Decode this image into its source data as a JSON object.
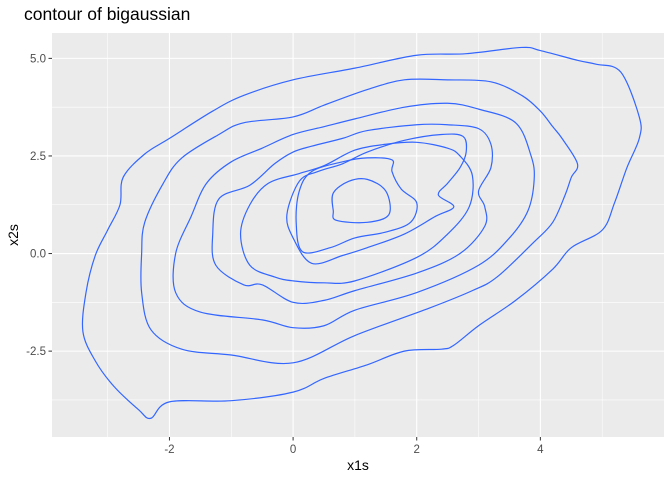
{
  "chart_data": {
    "type": "contour",
    "title": "contour of bigaussian",
    "xlabel": "x1s",
    "ylabel": "x2s",
    "xlim": [
      -3.9,
      6.0
    ],
    "ylim": [
      -4.7,
      5.65
    ],
    "x_ticks": [
      -2,
      0,
      2,
      4
    ],
    "x_tick_labels": [
      "-2",
      "0",
      "2",
      "4"
    ],
    "y_ticks": [
      -2.5,
      0.0,
      2.5,
      5.0
    ],
    "y_tick_labels": [
      "-2.5",
      "0.0",
      "2.5",
      "5.0"
    ],
    "grid": true,
    "panel_background": "#EBEBEB",
    "grid_color": "#FFFFFF",
    "line_color": "#3366FF",
    "contours": [
      [
        [
          -2.3,
          -4.22
        ],
        [
          -2.0,
          -3.8
        ],
        [
          -1.0,
          -3.77
        ],
        [
          0.0,
          -3.55
        ],
        [
          0.5,
          -3.2
        ],
        [
          1.2,
          -2.85
        ],
        [
          1.8,
          -2.5
        ],
        [
          2.4,
          -2.45
        ],
        [
          2.6,
          -2.35
        ],
        [
          3.0,
          -1.85
        ],
        [
          3.6,
          -1.2
        ],
        [
          4.2,
          -0.4
        ],
        [
          4.5,
          0.15
        ],
        [
          5.0,
          0.6
        ],
        [
          5.2,
          1.3
        ],
        [
          5.4,
          2.2
        ],
        [
          5.6,
          2.95
        ],
        [
          5.6,
          3.5
        ],
        [
          5.3,
          4.65
        ],
        [
          4.9,
          4.85
        ],
        [
          4.6,
          4.95
        ],
        [
          4.0,
          5.2
        ],
        [
          3.7,
          5.28
        ],
        [
          2.8,
          5.12
        ],
        [
          2.0,
          5.08
        ],
        [
          1.0,
          4.75
        ],
        [
          0.0,
          4.45
        ],
        [
          -0.8,
          4.05
        ],
        [
          -1.3,
          3.65
        ],
        [
          -2.0,
          2.95
        ],
        [
          -2.4,
          2.55
        ],
        [
          -2.75,
          1.95
        ],
        [
          -2.8,
          1.25
        ],
        [
          -3.0,
          0.6
        ],
        [
          -3.2,
          -0.05
        ],
        [
          -3.35,
          -1.0
        ],
        [
          -3.4,
          -2.0
        ],
        [
          -3.2,
          -2.75
        ],
        [
          -2.9,
          -3.4
        ],
        [
          -2.5,
          -4.0
        ],
        [
          -2.3,
          -4.22
        ]
      ],
      [
        [
          -1.8,
          -2.45
        ],
        [
          -1.0,
          -2.6
        ],
        [
          0.0,
          -2.8
        ],
        [
          1.0,
          -2.1
        ],
        [
          2.2,
          -1.4
        ],
        [
          2.9,
          -0.95
        ],
        [
          3.3,
          -0.6
        ],
        [
          3.9,
          0.3
        ],
        [
          4.2,
          0.8
        ],
        [
          4.4,
          1.5
        ],
        [
          4.5,
          1.95
        ],
        [
          4.6,
          2.3
        ],
        [
          4.35,
          2.95
        ],
        [
          4.2,
          3.25
        ],
        [
          4.0,
          3.65
        ],
        [
          3.7,
          4.05
        ],
        [
          3.2,
          4.4
        ],
        [
          2.5,
          4.45
        ],
        [
          1.8,
          4.45
        ],
        [
          1.2,
          4.2
        ],
        [
          0.5,
          3.8
        ],
        [
          0.0,
          3.5
        ],
        [
          -0.8,
          3.35
        ],
        [
          -1.2,
          3.05
        ],
        [
          -1.8,
          2.45
        ],
        [
          -2.1,
          1.8
        ],
        [
          -2.4,
          0.8
        ],
        [
          -2.45,
          0.0
        ],
        [
          -2.45,
          -1.0
        ],
        [
          -2.3,
          -1.95
        ],
        [
          -1.8,
          -2.45
        ]
      ],
      [
        [
          -1.5,
          -1.5
        ],
        [
          -0.5,
          -1.7
        ],
        [
          0.0,
          -1.9
        ],
        [
          0.5,
          -1.85
        ],
        [
          1.0,
          -1.45
        ],
        [
          2.0,
          -1.0
        ],
        [
          3.0,
          -0.3
        ],
        [
          3.5,
          0.4
        ],
        [
          3.8,
          1.1
        ],
        [
          3.9,
          1.9
        ],
        [
          3.85,
          2.5
        ],
        [
          3.6,
          3.35
        ],
        [
          3.0,
          3.7
        ],
        [
          2.5,
          3.85
        ],
        [
          1.8,
          3.75
        ],
        [
          1.0,
          3.45
        ],
        [
          0.5,
          3.25
        ],
        [
          0.0,
          3.05
        ],
        [
          -0.5,
          2.7
        ],
        [
          -1.0,
          2.35
        ],
        [
          -1.4,
          1.8
        ],
        [
          -1.65,
          0.95
        ],
        [
          -1.9,
          0.0
        ],
        [
          -1.9,
          -1.0
        ],
        [
          -1.5,
          -1.5
        ]
      ],
      [
        [
          -0.5,
          -0.8
        ],
        [
          0.0,
          -1.25
        ],
        [
          0.5,
          -1.2
        ],
        [
          1.0,
          -0.95
        ],
        [
          2.0,
          -0.5
        ],
        [
          2.7,
          0.0
        ],
        [
          3.1,
          0.7
        ],
        [
          3.1,
          1.2
        ],
        [
          3.0,
          1.6
        ],
        [
          3.2,
          2.2
        ],
        [
          3.2,
          2.8
        ],
        [
          3.0,
          3.2
        ],
        [
          2.5,
          3.3
        ],
        [
          2.0,
          3.3
        ],
        [
          1.2,
          3.15
        ],
        [
          0.8,
          2.95
        ],
        [
          0.3,
          2.75
        ],
        [
          0.0,
          2.6
        ],
        [
          -0.3,
          2.3
        ],
        [
          -0.7,
          1.75
        ],
        [
          -1.2,
          1.4
        ],
        [
          -1.3,
          0.5
        ],
        [
          -1.25,
          -0.3
        ],
        [
          -0.8,
          -0.8
        ],
        [
          -0.5,
          -0.8
        ]
      ],
      [
        [
          0.0,
          -0.7
        ],
        [
          0.5,
          -0.75
        ],
        [
          1.0,
          -0.7
        ],
        [
          2.0,
          -0.1
        ],
        [
          2.5,
          0.5
        ],
        [
          2.85,
          1.2
        ],
        [
          2.9,
          2.0
        ],
        [
          2.7,
          2.5
        ],
        [
          2.5,
          2.7
        ],
        [
          2.0,
          2.85
        ],
        [
          1.5,
          2.8
        ],
        [
          1.0,
          2.65
        ],
        [
          0.5,
          2.25
        ],
        [
          0.1,
          2.05
        ],
        [
          -0.4,
          1.8
        ],
        [
          -0.7,
          1.25
        ],
        [
          -0.85,
          0.5
        ],
        [
          -0.7,
          -0.3
        ],
        [
          -0.3,
          -0.6
        ],
        [
          0.0,
          -0.7
        ]
      ],
      [
        [
          0.3,
          -0.25
        ],
        [
          0.8,
          -0.05
        ],
        [
          1.2,
          0.15
        ],
        [
          1.8,
          0.5
        ],
        [
          2.3,
          0.95
        ],
        [
          2.6,
          1.2
        ],
        [
          2.35,
          1.5
        ],
        [
          2.5,
          1.8
        ],
        [
          2.7,
          2.2
        ],
        [
          2.8,
          2.6
        ],
        [
          2.75,
          3.0
        ],
        [
          2.4,
          3.05
        ],
        [
          1.8,
          2.9
        ],
        [
          1.2,
          2.6
        ],
        [
          0.8,
          2.3
        ],
        [
          0.4,
          2.1
        ],
        [
          0.1,
          1.85
        ],
        [
          -0.1,
          1.0
        ],
        [
          0.0,
          0.4
        ],
        [
          0.3,
          -0.25
        ]
      ],
      [
        [
          0.15,
          0.05
        ],
        [
          0.6,
          0.15
        ],
        [
          1.0,
          0.4
        ],
        [
          1.5,
          0.55
        ],
        [
          1.9,
          0.8
        ],
        [
          2.0,
          1.3
        ],
        [
          1.75,
          1.65
        ],
        [
          1.6,
          2.1
        ],
        [
          1.6,
          2.4
        ],
        [
          1.2,
          2.45
        ],
        [
          0.8,
          2.35
        ],
        [
          0.3,
          2.1
        ],
        [
          0.1,
          1.6
        ],
        [
          0.05,
          0.8
        ],
        [
          0.15,
          0.05
        ]
      ],
      [
        [
          0.7,
          0.85
        ],
        [
          1.2,
          0.8
        ],
        [
          1.55,
          1.0
        ],
        [
          1.5,
          1.6
        ],
        [
          1.2,
          1.9
        ],
        [
          0.9,
          1.85
        ],
        [
          0.65,
          1.55
        ],
        [
          0.65,
          1.1
        ],
        [
          0.7,
          0.85
        ]
      ]
    ]
  }
}
